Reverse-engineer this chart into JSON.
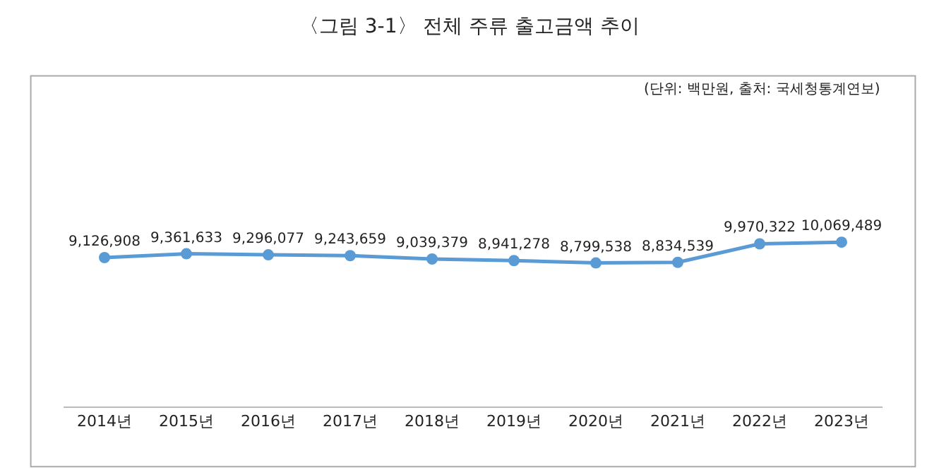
{
  "chart_data": {
    "type": "line",
    "title": "〈그림 3-1〉 전체 주류 출고금액 추이",
    "annotations": [
      "(단위: 백만원, 출처: 국세청통계연보)"
    ],
    "categories": [
      "2014년",
      "2015년",
      "2016년",
      "2017년",
      "2018년",
      "2019년",
      "2020년",
      "2021년",
      "2022년",
      "2023년"
    ],
    "series": [
      {
        "color": "#5b9bd5",
        "values": [
          9126908,
          9361633,
          9296077,
          9243659,
          9039379,
          8941278,
          8799538,
          8834539,
          9970322,
          10069489
        ],
        "value_labels": [
          "9,126,908",
          "9,361,633",
          "9,296,077",
          "9,243,659",
          "9,039,379",
          "8,941,278",
          "8,799,538",
          "8,834,539",
          "9,970,322",
          "10,069,489"
        ]
      }
    ],
    "tick_labels": "x",
    "marker": "circle",
    "line_style": "solid",
    "legend": false
  }
}
